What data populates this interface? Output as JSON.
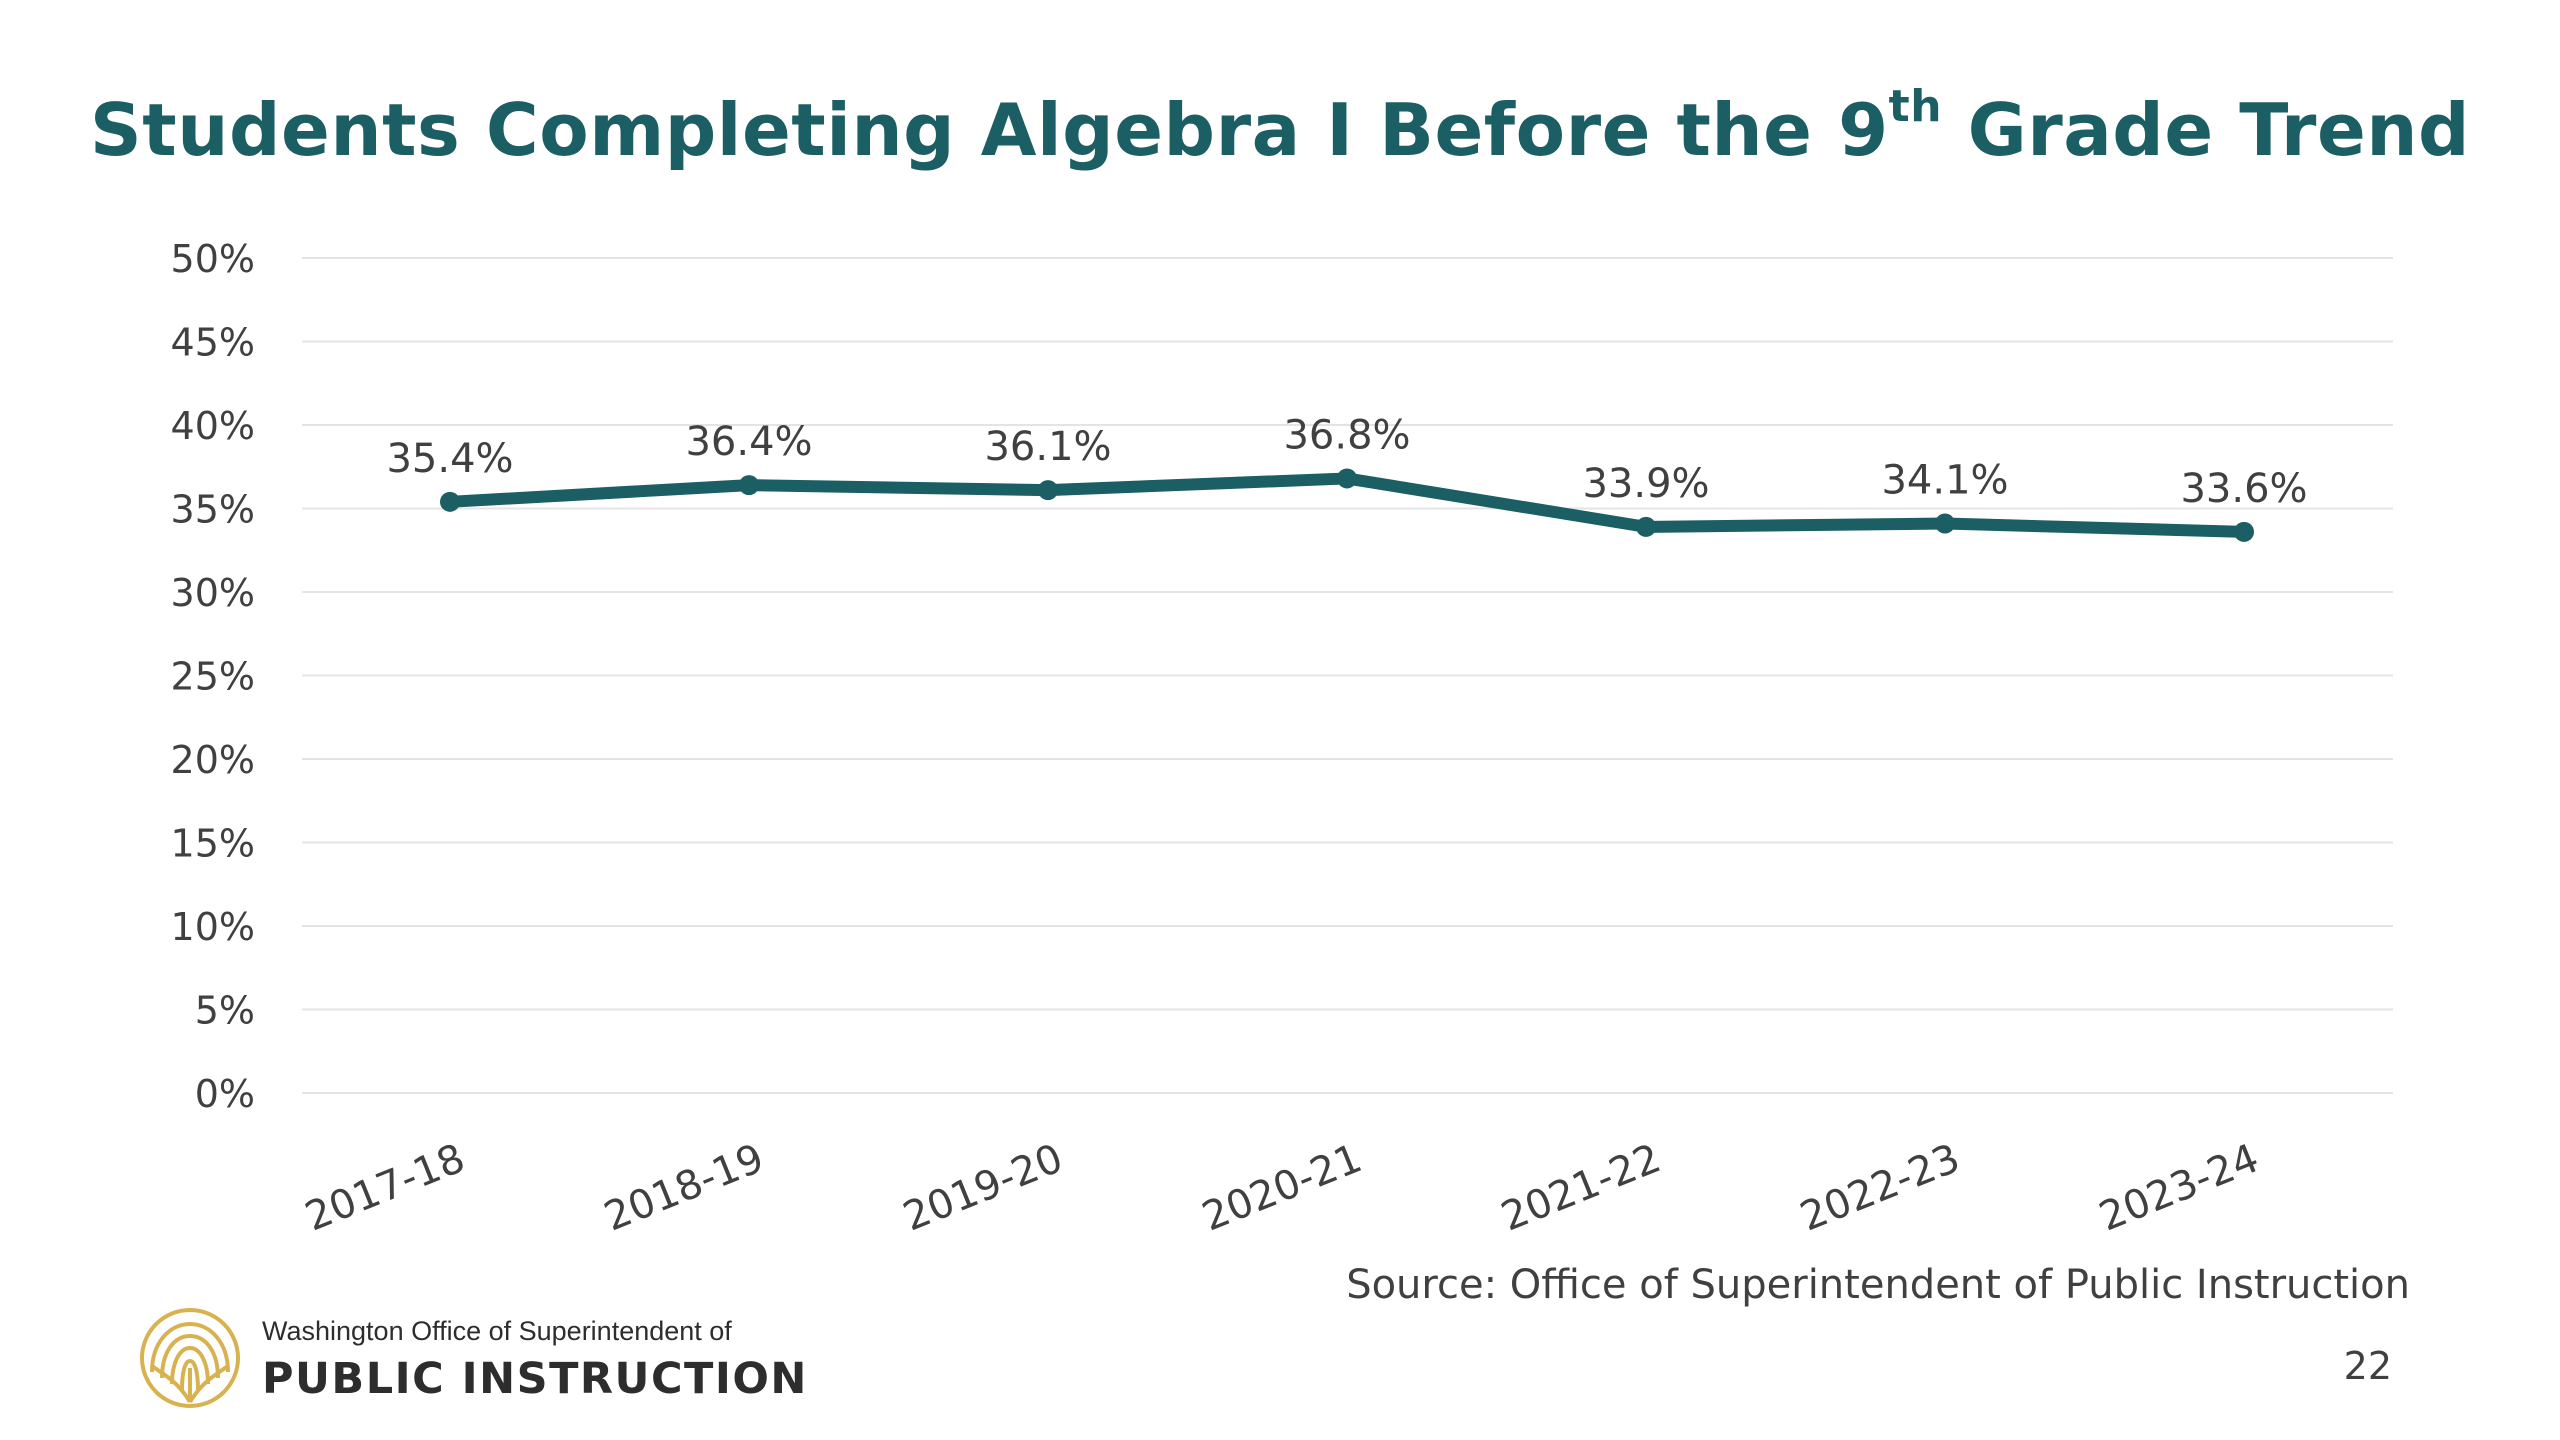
{
  "slide": {
    "page_number": "22",
    "source": "Source: Office of Superintendent of Public Instruction",
    "logo": {
      "icon": "ospi-seal-icon",
      "line1": "Washington Office of Superintendent of",
      "line2": "PUBLIC INSTRUCTION"
    },
    "colors": {
      "title": "#1b5e63",
      "series": "#1b5e63",
      "grid": "#e4e4e4",
      "text": "#404040",
      "logo": "#d8b24f"
    }
  },
  "chart_data": {
    "type": "line",
    "title": {
      "before": "Students Completing Algebra I Before the 9",
      "sup": "th",
      "after": " Grade Trend"
    },
    "xlabel": "",
    "ylabel": "",
    "categories": [
      "2017-18",
      "2018-19",
      "2019-20",
      "2020-21",
      "2021-22",
      "2022-23",
      "2023-24"
    ],
    "series": [
      {
        "values": [
          35.4,
          36.4,
          36.1,
          36.8,
          33.9,
          34.1,
          33.6
        ],
        "data_labels": [
          "35.4%",
          "36.4%",
          "36.1%",
          "36.8%",
          "33.9%",
          "34.1%",
          "33.6%"
        ]
      }
    ],
    "ylim": [
      0,
      50
    ],
    "y_ticks": [
      "0%",
      "5%",
      "10%",
      "15%",
      "20%",
      "25%",
      "30%",
      "35%",
      "40%",
      "45%",
      "50%"
    ],
    "grid": true,
    "legend": "none"
  }
}
